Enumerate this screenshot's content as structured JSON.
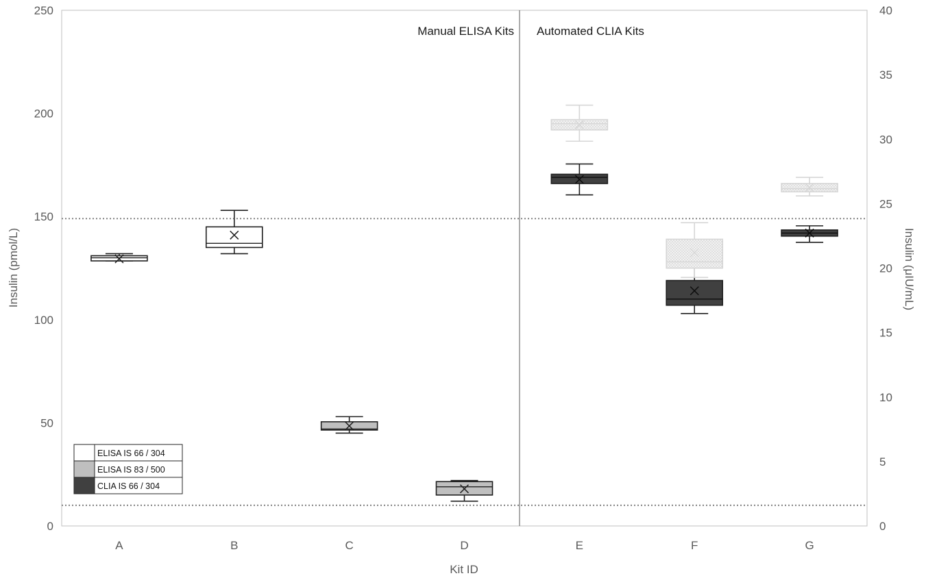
{
  "chart_data": {
    "type": "box",
    "xlabel": "Kit ID",
    "ylabel_left": "Insulin (pmol/L)",
    "ylabel_right": "Insulin (μIU/mL)",
    "ylim_left": [
      0,
      250
    ],
    "ylim_right": [
      0,
      40
    ],
    "yticks_left": [
      "0",
      "50",
      "100",
      "150",
      "200",
      "250"
    ],
    "yticks_right": [
      "0",
      "5",
      "10",
      "15",
      "20",
      "25",
      "30",
      "35",
      "40"
    ],
    "categories": [
      "A",
      "B",
      "C",
      "D",
      "E",
      "F",
      "G"
    ],
    "section_labels": [
      "Manual ELISA Kits",
      "Automated CLIA Kits"
    ],
    "reference_lines": [
      149,
      10
    ],
    "grid": false,
    "legend_position": "bottom-left",
    "legend": [
      {
        "label": "ELISA IS 66 / 304",
        "color": "#ffffff"
      },
      {
        "label": "ELISA IS 83 / 500",
        "color": "#bfbfbf"
      },
      {
        "label": "CLIA IS 66 / 304",
        "color": "#404040"
      }
    ],
    "series": [
      {
        "name": "ELISA IS 66 / 304",
        "color": "#ffffff",
        "boxes": [
          {
            "category": "A",
            "min": 128.5,
            "q1": 128.5,
            "median": 130,
            "q3": 131,
            "max": 132,
            "mean": 129.5
          },
          {
            "category": "B",
            "min": 132,
            "q1": 135,
            "median": 137,
            "q3": 145,
            "max": 153,
            "mean": 141
          }
        ]
      },
      {
        "name": "ELISA IS 83 / 500",
        "color": "#bfbfbf",
        "boxes": [
          {
            "category": "C",
            "min": 45,
            "q1": 46.5,
            "median": 47,
            "q3": 50.5,
            "max": 53,
            "mean": 48.5
          },
          {
            "category": "D",
            "min": 12,
            "q1": 15,
            "median": 19,
            "q3": 21.5,
            "max": 22,
            "mean": 18
          }
        ]
      },
      {
        "name": "CLIA IS 66 / 304",
        "color": "#404040",
        "boxes": [
          {
            "category": "E",
            "min": 160.5,
            "q1": 166,
            "median": 169,
            "q3": 170.5,
            "max": 175.5,
            "mean": 168
          },
          {
            "category": "F",
            "min": 103,
            "q1": 107,
            "median": 110,
            "q3": 119,
            "max": 126,
            "mean": 114
          },
          {
            "category": "G",
            "min": 137.5,
            "q1": 140.5,
            "median": 142,
            "q3": 143.5,
            "max": 145.5,
            "mean": 142
          }
        ]
      },
      {
        "color": "#e6e6e6",
        "pattern": "dotted",
        "boxes": [
          {
            "category": "E",
            "min": 186.5,
            "q1": 192,
            "median": 195,
            "q3": 197,
            "max": 204,
            "mean": 194.5
          },
          {
            "category": "F",
            "min": 120.5,
            "q1": 125,
            "median": 128,
            "q3": 139,
            "max": 147,
            "mean": 132.5
          },
          {
            "category": "G",
            "min": 160,
            "q1": 162,
            "median": 163.5,
            "q3": 166,
            "max": 169,
            "mean": 164
          }
        ]
      }
    ]
  }
}
